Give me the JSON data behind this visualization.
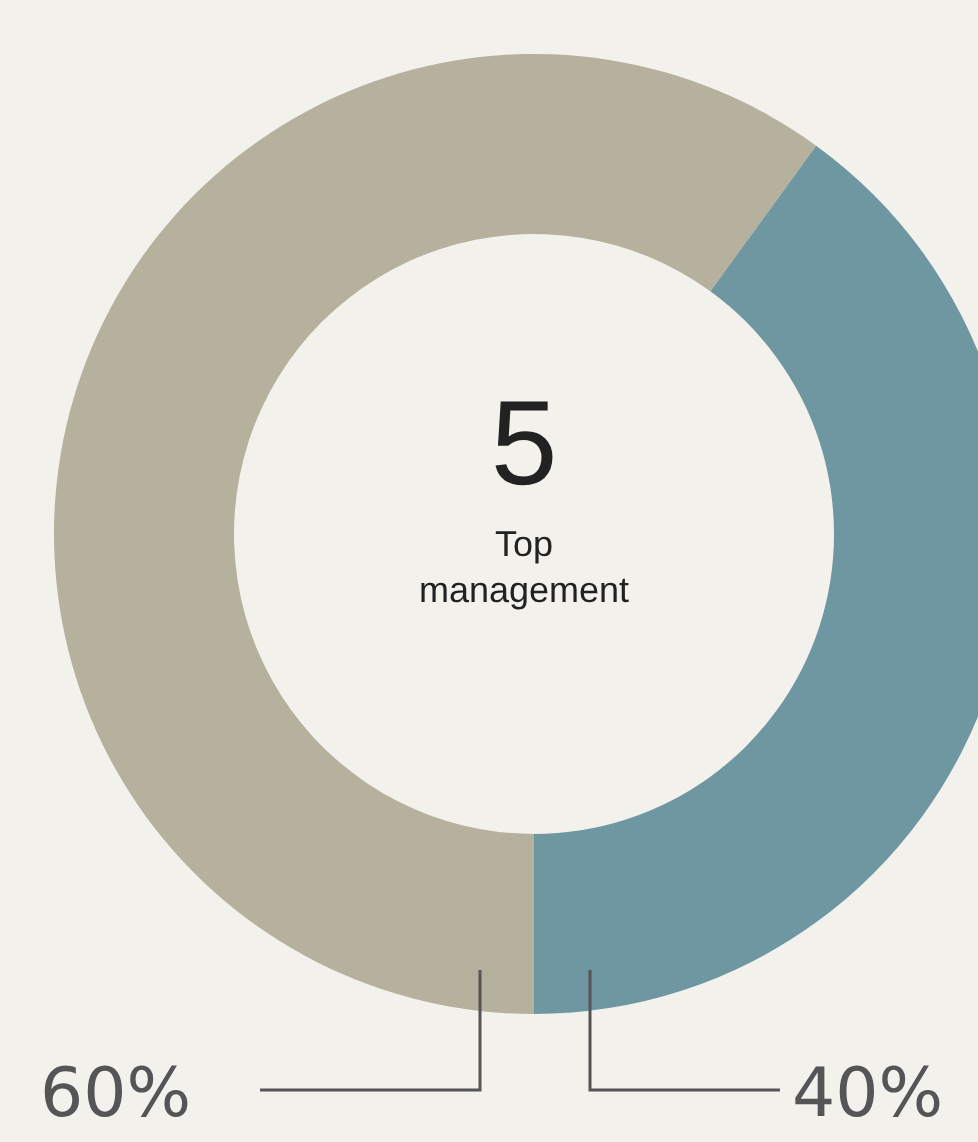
{
  "chart_data": {
    "type": "donut",
    "categories": [
      null,
      null
    ],
    "values": [
      60,
      40
    ],
    "colors": [
      "#b5b19d",
      "#6f97a2"
    ],
    "value_labels": [
      "60%",
      "40%"
    ],
    "annotations": [
      "5",
      "Top management"
    ]
  }
}
